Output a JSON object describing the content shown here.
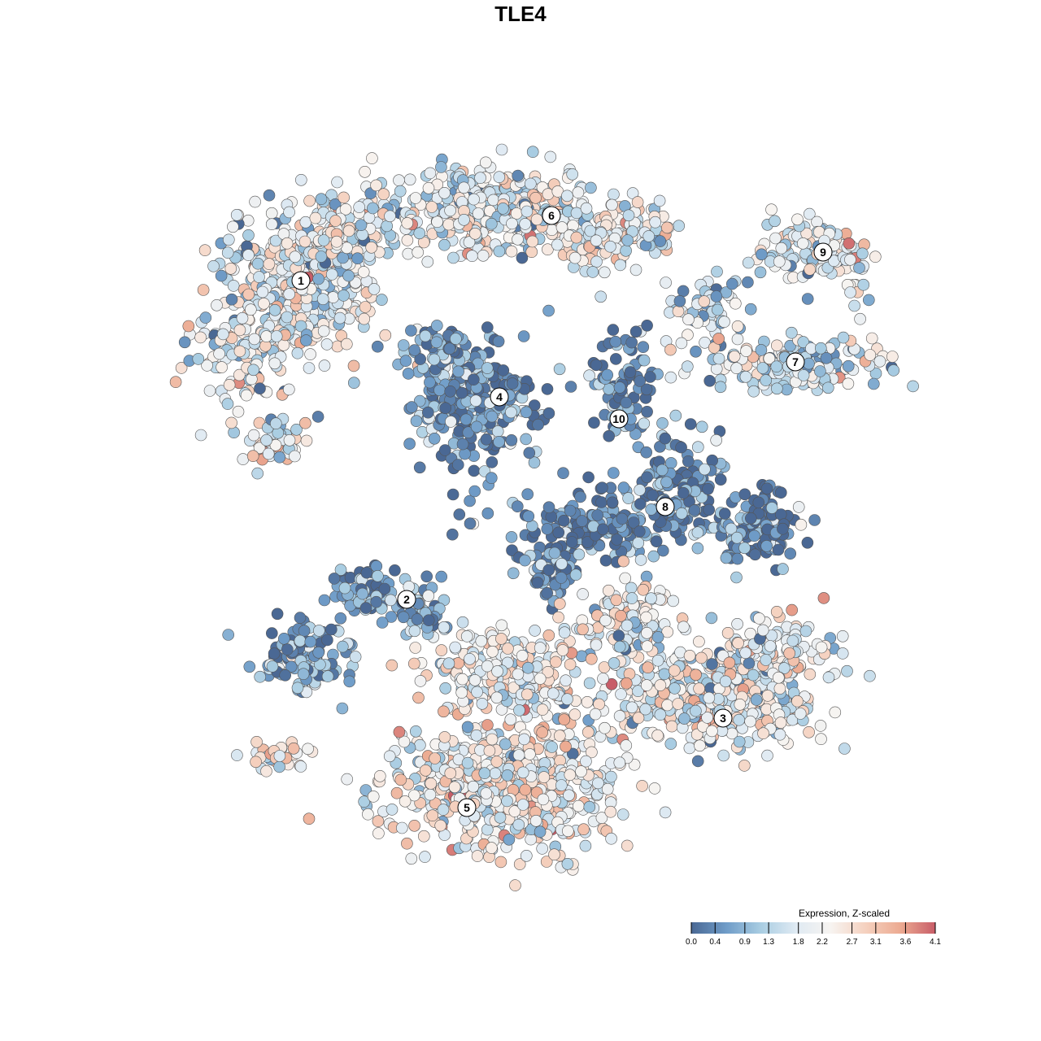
{
  "chart_data": {
    "type": "scatter",
    "title": "TLE4",
    "plot_kind": "embedding scatter (cells colored by expression)",
    "colorbar": {
      "title": "Expression, Z-scaled",
      "ticks": [
        "0.0",
        "0.4",
        "0.9",
        "1.3",
        "1.8",
        "2.2",
        "2.7",
        "3.1",
        "3.6",
        "4.1"
      ],
      "tick_values": [
        0.0,
        0.4,
        0.9,
        1.3,
        1.8,
        2.2,
        2.7,
        3.1,
        3.6,
        4.1
      ],
      "range": [
        0.0,
        4.1
      ],
      "colors": [
        "#4a6894",
        "#6f9cc8",
        "#a9cde2",
        "#dfeaf3",
        "#f7f4f1",
        "#f5d1bf",
        "#ecaa91",
        "#c85d68"
      ]
    },
    "clusters": [
      {
        "label": "1"
      },
      {
        "label": "2"
      },
      {
        "label": "3"
      },
      {
        "label": "4"
      },
      {
        "label": "5"
      },
      {
        "label": "6"
      },
      {
        "label": "7"
      },
      {
        "label": "8"
      },
      {
        "label": "9"
      },
      {
        "label": "10"
      }
    ],
    "cluster_mean_expression": {
      "1": 1.9,
      "2": 0.6,
      "3": 2.1,
      "4": 0.5,
      "5": 2.2,
      "6": 2.0,
      "7": 1.6,
      "8": 0.3,
      "9": 1.8,
      "10": 0.3
    },
    "legend_position": "bottom-right",
    "grid": false
  }
}
